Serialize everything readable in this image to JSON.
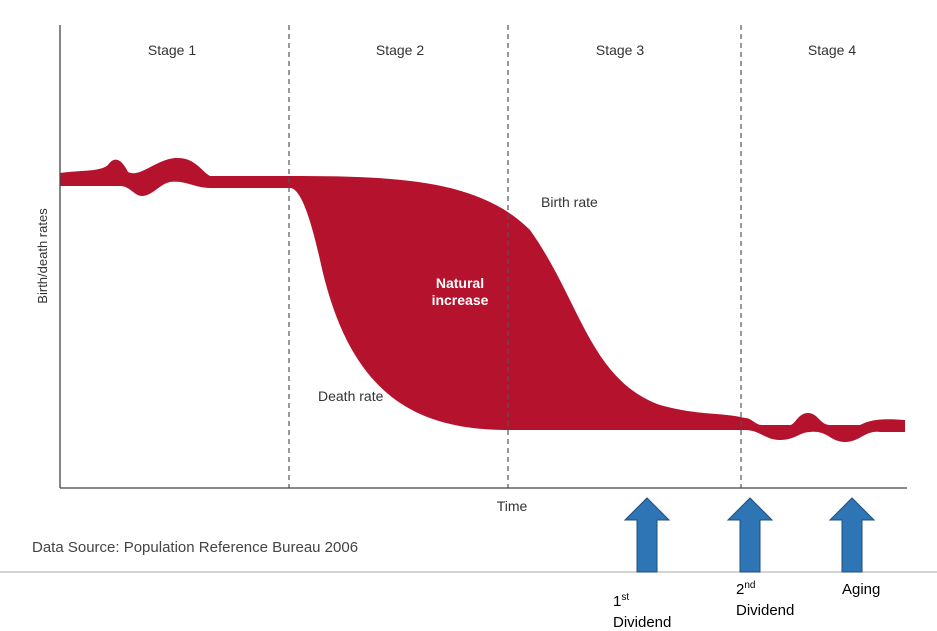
{
  "diagram": {
    "stages": [
      "Stage 1",
      "Stage 2",
      "Stage 3",
      "Stage 4"
    ],
    "y_axis_label": "Birth/death rates",
    "x_axis_label": "Time",
    "birth_rate_label": "Birth rate",
    "death_rate_label": "Death rate",
    "natural_increase_label": [
      "Natural",
      "increase"
    ],
    "source": "Data Source: Population Reference Bureau 2006",
    "arrows": [
      {
        "number": "1",
        "suffix": "st",
        "word": "Dividend"
      },
      {
        "number": "2",
        "suffix": "nd",
        "word": "Dividend"
      },
      {
        "word": "Aging"
      }
    ]
  }
}
